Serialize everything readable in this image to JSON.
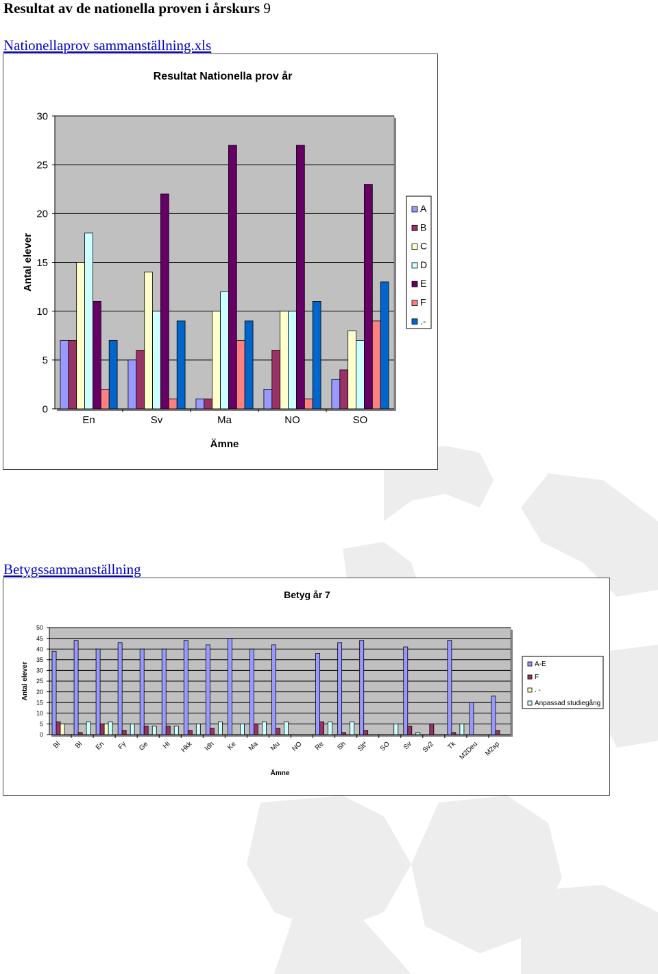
{
  "page": {
    "heading": "Resultat av de nationella proven i årskurs",
    "heading_number": "9",
    "link1": "Nationellaprov sammanställning.xls",
    "link2": "Betygssammanställning"
  },
  "colors": {
    "plot_bg": "#c0c0c0",
    "gear": "#ececec"
  },
  "chart_data": [
    {
      "type": "bar",
      "title": "Resultat Nationella prov år",
      "xlabel": "Ämne",
      "ylabel": "Antal elever",
      "ylim": [
        0,
        30
      ],
      "yticks": [
        0,
        5,
        10,
        15,
        20,
        25,
        30
      ],
      "grid": true,
      "legend": "right",
      "categories": [
        "En",
        "Sv",
        "Ma",
        "NO",
        "SO"
      ],
      "series": [
        {
          "name": "A",
          "color": "#9999ff",
          "values": [
            7,
            5,
            1,
            2,
            3
          ]
        },
        {
          "name": "B",
          "color": "#993366",
          "values": [
            7,
            6,
            1,
            6,
            4
          ]
        },
        {
          "name": "C",
          "color": "#ffffcc",
          "values": [
            15,
            14,
            10,
            10,
            8
          ]
        },
        {
          "name": "D",
          "color": "#ccffff",
          "values": [
            18,
            10,
            12,
            10,
            7
          ]
        },
        {
          "name": "E",
          "color": "#660066",
          "values": [
            11,
            22,
            27,
            27,
            23
          ]
        },
        {
          "name": "F",
          "color": "#ff8080",
          "values": [
            2,
            1,
            7,
            1,
            9
          ]
        },
        {
          "name": ".-",
          "color": "#0066cc",
          "values": [
            7,
            9,
            9,
            11,
            13
          ]
        }
      ]
    },
    {
      "type": "bar",
      "title": "Betyg år 7",
      "xlabel": "Ämne",
      "ylabel": "Antal elever",
      "ylim": [
        0,
        50
      ],
      "yticks": [
        0,
        5,
        10,
        15,
        20,
        25,
        30,
        35,
        40,
        45,
        50
      ],
      "grid": true,
      "legend": "right",
      "categories": [
        "Bl",
        "Bl",
        "En",
        "Fy",
        "Ge",
        "Hi",
        "Hkk",
        "Idh",
        "Ke",
        "Ma",
        "Mu",
        "NO",
        "Re",
        "Sh",
        "Slt*",
        "SO",
        "Sv",
        "Sv2",
        "Tk",
        "M2Deu",
        "M2sp"
      ],
      "series": [
        {
          "name": "A-E",
          "color": "#9999ff",
          "values": [
            39,
            44,
            40,
            43,
            40,
            40,
            44,
            42,
            45,
            40,
            42,
            0,
            38,
            43,
            44,
            0,
            41,
            0,
            44,
            15,
            18
          ]
        },
        {
          "name": "F",
          "color": "#993366",
          "values": [
            6,
            1,
            5,
            2,
            4,
            4,
            2,
            3,
            0,
            5,
            3,
            0,
            6,
            1,
            2,
            0,
            4,
            5,
            1,
            0,
            2
          ]
        },
        {
          "name": ". -",
          "color": "#ffffcc",
          "values": [
            5,
            0,
            5,
            0,
            0,
            0,
            0,
            0,
            0,
            0,
            0,
            0,
            0,
            0,
            0,
            0,
            0,
            0,
            0,
            0,
            0
          ]
        },
        {
          "name": "Anpassad studiegång",
          "color": "#ccffff",
          "values": [
            0,
            6,
            6,
            5,
            4,
            4,
            5,
            6,
            5,
            6,
            6,
            0,
            6,
            6,
            0,
            5,
            1,
            0,
            5,
            0,
            0
          ]
        }
      ]
    }
  ]
}
